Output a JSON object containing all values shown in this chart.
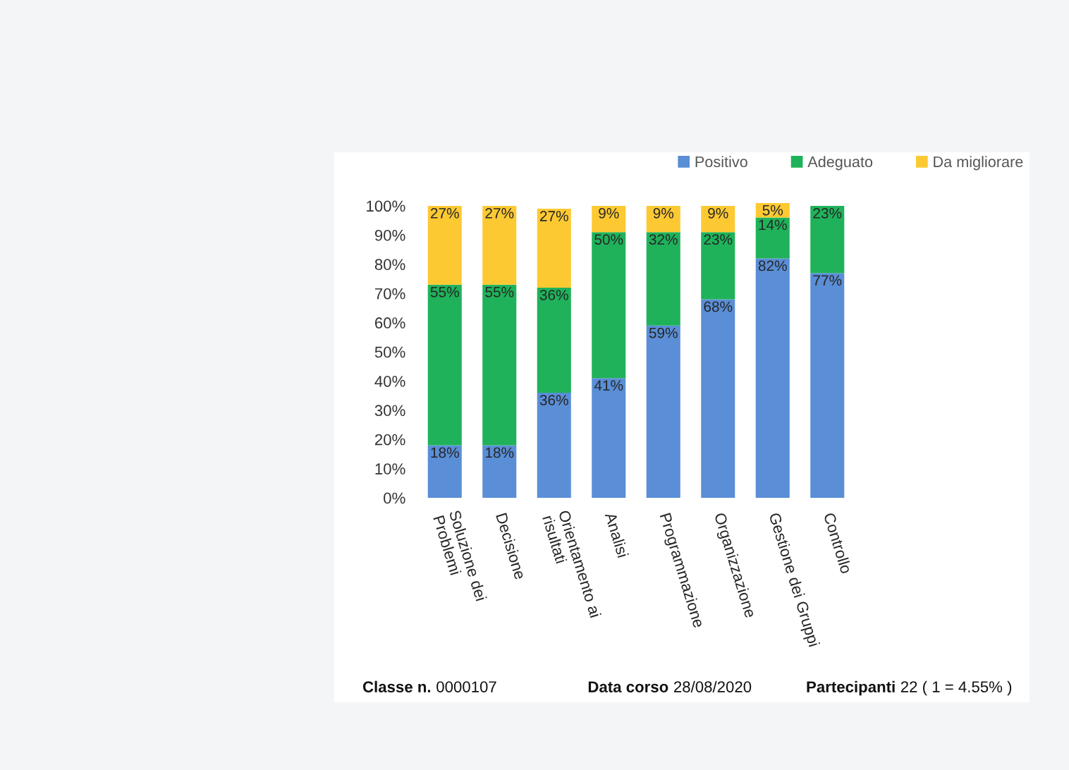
{
  "chart_data": {
    "type": "bar",
    "stacked": true,
    "categories": [
      "Soluzione dei\nProblemi",
      "Decisione",
      "Orientamento ai\nrisultati",
      "Analisi",
      "Programmazione",
      "Organizzazione",
      "Gestione dei Gruppi",
      "Controllo"
    ],
    "series": [
      {
        "name": "Positivo",
        "color": "#5a8ed6",
        "values": [
          18,
          18,
          36,
          41,
          59,
          68,
          82,
          77
        ],
        "value_labels": [
          "18%",
          "18%",
          "36%",
          "41%",
          "59%",
          "68%",
          "82%",
          "77%"
        ]
      },
      {
        "name": "Adeguato",
        "color": "#1fb25a",
        "values": [
          55,
          55,
          36,
          50,
          32,
          23,
          14,
          23
        ],
        "value_labels": [
          "55%",
          "55%",
          "36%",
          "50%",
          "32%",
          "23%",
          "14%",
          "23%"
        ]
      },
      {
        "name": "Da migliorare",
        "color": "#fdc933",
        "values": [
          27,
          27,
          27,
          9,
          9,
          9,
          5,
          null
        ],
        "value_labels": [
          "27%",
          "27%",
          "27%",
          "9%",
          "9%",
          "9%",
          "5%",
          null
        ]
      }
    ],
    "ylim": [
      0,
      101
    ],
    "yticks": [
      {
        "value": 0,
        "label": "0%"
      },
      {
        "value": 10,
        "label": "10%"
      },
      {
        "value": 20,
        "label": "20%"
      },
      {
        "value": 30,
        "label": "30%"
      },
      {
        "value": 40,
        "label": "40%"
      },
      {
        "value": 50,
        "label": "50%"
      },
      {
        "value": 60,
        "label": "60%"
      },
      {
        "value": 70,
        "label": "70%"
      },
      {
        "value": 80,
        "label": "80%"
      },
      {
        "value": 90,
        "label": "90%"
      },
      {
        "value": 100,
        "label": "100%"
      }
    ],
    "legend": "top right",
    "annotations": [
      "Classe n.",
      "0000107",
      "Data corso",
      "28/08/2020",
      "Partecipanti",
      "22 ( 1 = 4.55% )"
    ]
  }
}
